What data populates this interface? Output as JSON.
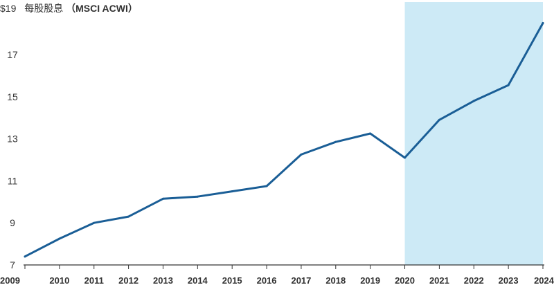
{
  "chart_data": {
    "type": "line",
    "ylabel_prefix": "$19",
    "ylabel_text": "每股股息",
    "ylabel_index": "（MSCI ACWI）",
    "x": [
      "2009",
      "2010",
      "2011",
      "2012",
      "2013",
      "2014",
      "2015",
      "2016",
      "2017",
      "2018",
      "2019",
      "2020",
      "2021",
      "2022",
      "2023",
      "2024"
    ],
    "series": [
      {
        "values": [
          7.4,
          8.25,
          9.0,
          9.3,
          10.15,
          10.25,
          10.5,
          10.75,
          12.25,
          12.85,
          13.25,
          12.1,
          13.9,
          14.8,
          15.55,
          18.5
        ]
      }
    ],
    "yticks": [
      "7",
      "9",
      "11",
      "13",
      "15",
      "17"
    ],
    "ytick_values": [
      7,
      9,
      11,
      13,
      15,
      17
    ],
    "ylim": [
      7,
      19.6
    ],
    "highlight_range": [
      "2020",
      "2024"
    ],
    "colors": {
      "line": "#1a5e96",
      "highlight": "#cdeaf6",
      "axis": "#333333"
    },
    "grid": false
  }
}
